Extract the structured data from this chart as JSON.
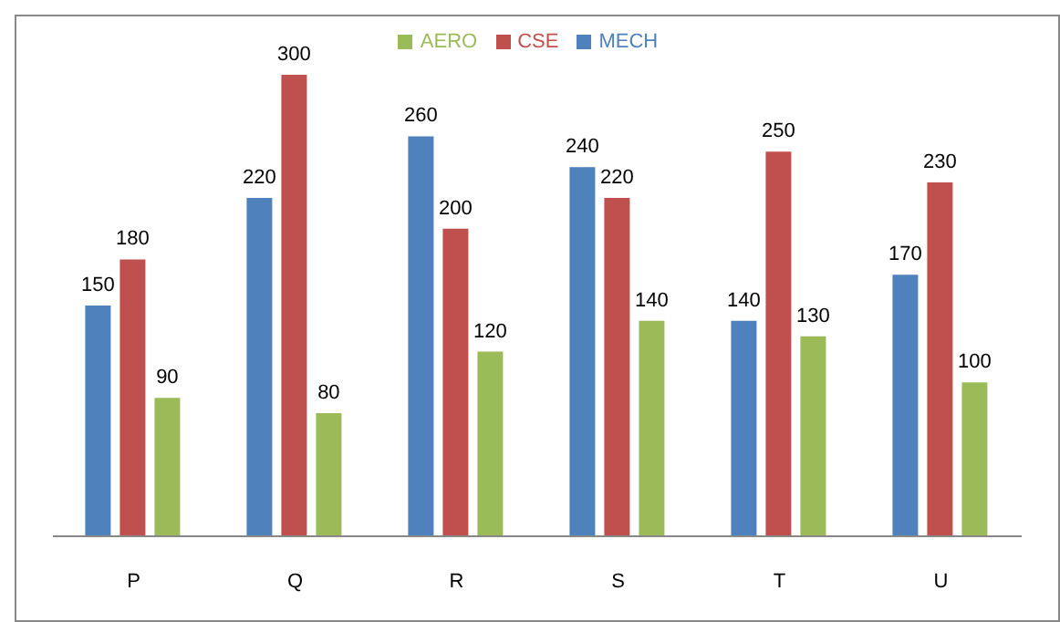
{
  "chart_data": {
    "type": "bar",
    "categories": [
      "P",
      "Q",
      "R",
      "S",
      "T",
      "U"
    ],
    "series": [
      {
        "name": "MECH",
        "color": "#4f81bd",
        "values": [
          150,
          220,
          260,
          240,
          140,
          170
        ]
      },
      {
        "name": "CSE",
        "color": "#c0504d",
        "values": [
          180,
          300,
          200,
          220,
          250,
          230
        ]
      },
      {
        "name": "AERO",
        "color": "#9bbb59",
        "values": [
          90,
          80,
          120,
          140,
          130,
          100
        ]
      }
    ],
    "data_labels": true,
    "legend": "top",
    "grid": false
  }
}
